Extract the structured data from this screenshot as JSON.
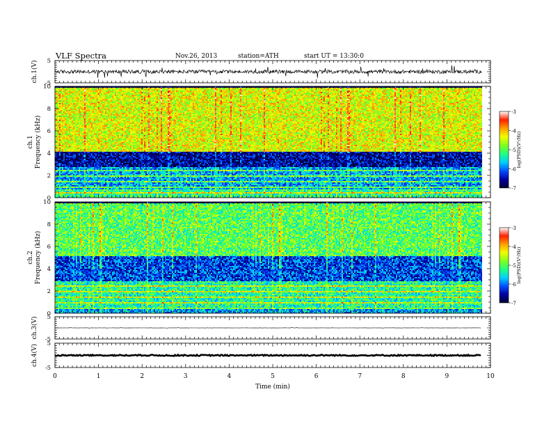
{
  "header": {
    "title": "VLF  Spectra",
    "date": "Nov.26, 2013",
    "station": "station=ATH",
    "start": "start  UT  =   13:30:0"
  },
  "colors": {
    "spectrogram_ramp": [
      "#000033",
      "#0000a0",
      "#0050ff",
      "#00d0ff",
      "#20ff80",
      "#80ff20",
      "#f0ff00",
      "#ffa000",
      "#ff2000",
      "#ffffff"
    ]
  },
  "chart_data": [
    {
      "type": "line",
      "name": "ch1-waveform",
      "ylabel": "ch.1(V)",
      "ylim": [
        -5,
        5
      ],
      "y_ticks": [
        "5",
        "-5"
      ],
      "x_range": [
        0,
        10
      ],
      "trace": {
        "baseline": 0,
        "noise_amplitude": 0.8,
        "spike_amplitude": 2.5,
        "x_end": 9.8
      }
    },
    {
      "type": "heatmap",
      "name": "ch1-spectrogram",
      "ylabel_top": "ch.1",
      "ylabel": "Frequency  (kHz)",
      "ylim": [
        0,
        10
      ],
      "y_ticks": [
        "0",
        "2",
        "4",
        "6",
        "8",
        "10"
      ],
      "x_range": [
        0,
        10
      ],
      "data_end": 9.8,
      "colorbar": {
        "label": "log(PSD)(V²/Hz)",
        "range": [
          -7,
          -3
        ],
        "ticks": [
          "-3",
          "-4",
          "-5",
          "-6",
          "-7"
        ]
      },
      "bands_khz": [
        {
          "from": 0,
          "to": 0.8,
          "level": -5.2
        },
        {
          "from": 0.8,
          "to": 2.8,
          "level": -5.8
        },
        {
          "from": 2.8,
          "to": 4.2,
          "level": -6.6
        },
        {
          "from": 4.2,
          "to": 10,
          "level": -4.4
        }
      ]
    },
    {
      "type": "heatmap",
      "name": "ch2-spectrogram",
      "ylabel_top": "ch.2",
      "ylabel": "Frequency  (kHz)",
      "ylim": [
        0,
        10
      ],
      "y_ticks": [
        "0",
        "2",
        "4",
        "6",
        "8",
        "10"
      ],
      "x_range": [
        0,
        10
      ],
      "data_end": 9.8,
      "colorbar": {
        "label": "log(PSD)(V²/Hz)",
        "range": [
          -7,
          -3
        ],
        "ticks": [
          "-3",
          "-4",
          "-5",
          "-6",
          "-7"
        ]
      },
      "bands_khz": [
        {
          "from": 0,
          "to": 0.6,
          "level": -5.8
        },
        {
          "from": 0.6,
          "to": 3.0,
          "level": -5.3
        },
        {
          "from": 3.0,
          "to": 5.2,
          "level": -6.2
        },
        {
          "from": 5.2,
          "to": 10,
          "level": -5.0
        }
      ]
    },
    {
      "type": "line",
      "name": "ch3-waveform",
      "ylabel": "ch.3(V)",
      "ylim": [
        -5,
        5
      ],
      "y_ticks": [
        "5",
        "-5"
      ],
      "x_range": [
        0,
        10
      ],
      "trace": {
        "baseline": 0,
        "noise_amplitude": 0.05,
        "spike_amplitude": 0.2,
        "x_end": 9.8
      }
    },
    {
      "type": "line",
      "name": "ch4-waveform",
      "ylabel": "ch.4(V)",
      "ylim": [
        -5,
        5
      ],
      "y_ticks": [
        "5",
        "-5"
      ],
      "x_range": [
        0,
        10
      ],
      "trace": {
        "baseline": 0,
        "noise_amplitude": 0.25,
        "spike_amplitude": 0.3,
        "x_end": 9.8
      }
    }
  ],
  "x_axis": {
    "label": "Time  (min)",
    "range": [
      0,
      10
    ],
    "ticks": [
      "0",
      "1",
      "2",
      "3",
      "4",
      "5",
      "6",
      "7",
      "8",
      "9",
      "10"
    ]
  }
}
